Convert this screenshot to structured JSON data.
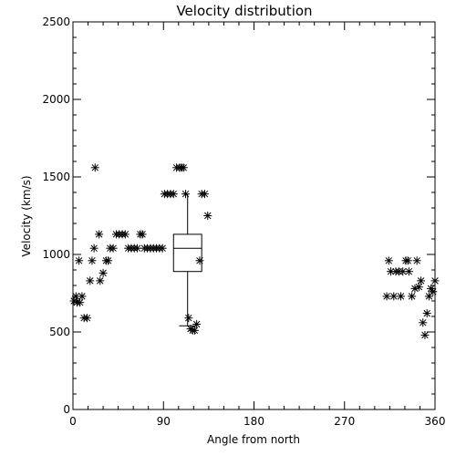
{
  "chart_data": {
    "type": "scatter",
    "title": "Velocity distribution",
    "xlabel": "Angle from north",
    "ylabel": "Velocity (km/s)",
    "xlim": [
      0,
      360
    ],
    "ylim": [
      0,
      2500
    ],
    "xticks": [
      0,
      90,
      180,
      270,
      360
    ],
    "yticks": [
      0,
      500,
      1000,
      1500,
      2000,
      2500
    ],
    "grid": false,
    "marker": "asterisk",
    "series": [
      {
        "points": [
          [
            1,
            700
          ],
          [
            3,
            730
          ],
          [
            4,
            690
          ],
          [
            6,
            960
          ],
          [
            7,
            690
          ],
          [
            9,
            730
          ],
          [
            11,
            590
          ],
          [
            14,
            590
          ],
          [
            17,
            830
          ],
          [
            19,
            960
          ],
          [
            21,
            1040
          ],
          [
            22,
            1560
          ],
          [
            26,
            1130
          ],
          [
            27,
            830
          ],
          [
            30,
            880
          ],
          [
            33,
            960
          ],
          [
            35,
            960
          ],
          [
            37,
            1040
          ],
          [
            40,
            1040
          ],
          [
            43,
            1130
          ],
          [
            46,
            1130
          ],
          [
            49,
            1130
          ],
          [
            52,
            1130
          ],
          [
            55,
            1040
          ],
          [
            58,
            1040
          ],
          [
            61,
            1040
          ],
          [
            64,
            1040
          ],
          [
            67,
            1130
          ],
          [
            69,
            1130
          ],
          [
            71,
            1040
          ],
          [
            74,
            1040
          ],
          [
            77,
            1040
          ],
          [
            80,
            1040
          ],
          [
            83,
            1040
          ],
          [
            86,
            1040
          ],
          [
            89,
            1040
          ],
          [
            91,
            1390
          ],
          [
            94,
            1390
          ],
          [
            97,
            1390
          ],
          [
            100,
            1390
          ],
          [
            103,
            1560
          ],
          [
            106,
            1560
          ],
          [
            108,
            1560
          ],
          [
            110,
            1560
          ],
          [
            112,
            1390
          ],
          [
            115,
            590
          ],
          [
            117,
            520
          ],
          [
            119,
            510
          ],
          [
            121,
            510
          ],
          [
            123,
            550
          ],
          [
            126,
            960
          ],
          [
            128,
            1390
          ],
          [
            131,
            1390
          ],
          [
            134,
            1250
          ],
          [
            312,
            730
          ],
          [
            314,
            960
          ],
          [
            316,
            890
          ],
          [
            319,
            730
          ],
          [
            321,
            890
          ],
          [
            324,
            890
          ],
          [
            326,
            730
          ],
          [
            328,
            890
          ],
          [
            331,
            960
          ],
          [
            333,
            960
          ],
          [
            334,
            890
          ],
          [
            337,
            730
          ],
          [
            340,
            780
          ],
          [
            342,
            960
          ],
          [
            344,
            790
          ],
          [
            346,
            830
          ],
          [
            348,
            560
          ],
          [
            350,
            480
          ],
          [
            352,
            620
          ],
          [
            354,
            730
          ],
          [
            356,
            780
          ],
          [
            358,
            760
          ],
          [
            360,
            830
          ]
        ]
      }
    ],
    "boxplot": {
      "x": 114,
      "whisker_low": 540,
      "q1": 890,
      "median": 1040,
      "q3": 1130,
      "whisker_high": 1390,
      "half_width": 14
    }
  }
}
